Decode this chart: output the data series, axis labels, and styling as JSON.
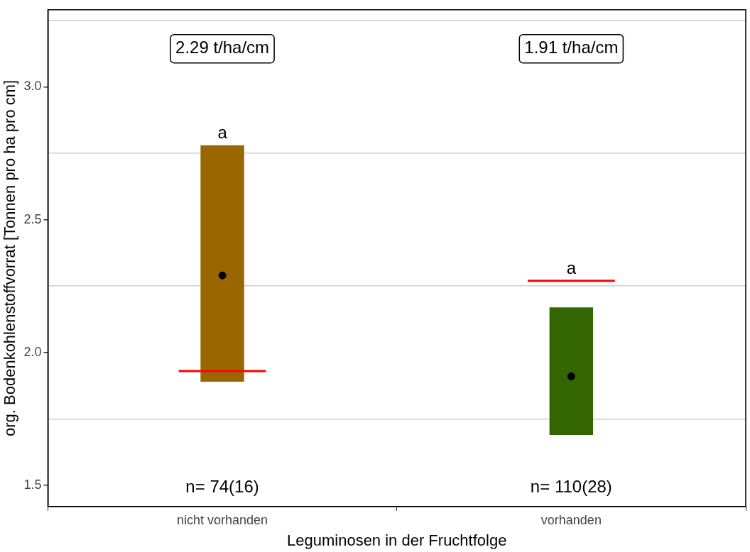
{
  "chart_data": {
    "type": "bar",
    "xlabel": "Leguminosen in der Fruchtfolge",
    "ylabel": "org. Bodenkohlenstoffvorrat [Tonnen pro ha pro cm]",
    "categories": [
      "nicht vorhanden",
      "vorhanden"
    ],
    "series": [
      {
        "colors": [
          "#996600",
          "#336600"
        ],
        "base": [
          1.89,
          1.69
        ],
        "values": [
          0.89,
          0.48
        ]
      },
      {
        "type": "scatter",
        "color": "#000000",
        "marker": "circle",
        "values": [
          2.29,
          1.91
        ]
      }
    ],
    "ref_lines": [
      {
        "axis": "y",
        "value": 1.93,
        "color": "#ff0000"
      },
      {
        "axis": "y",
        "value": 2.27,
        "color": "#ff0000"
      }
    ],
    "ylim": [
      1.42,
      3.29
    ],
    "yticks": [
      1.5,
      {
        "value": 1.75,
        "label": null
      },
      {
        "value": 2,
        "label": "2.0"
      },
      {
        "value": 2.25,
        "label": null
      },
      2.5,
      {
        "value": 2.75,
        "label": null
      },
      {
        "value": 3,
        "label": "3.0"
      },
      {
        "value": 3.25,
        "label": null
      }
    ],
    "grid": "y",
    "legend": false,
    "annotations": [
      "2.29 t/ha/cm",
      "1.91 t/ha/cm",
      "a",
      "a",
      "n= 74(16)",
      "n= 110(28)"
    ]
  }
}
